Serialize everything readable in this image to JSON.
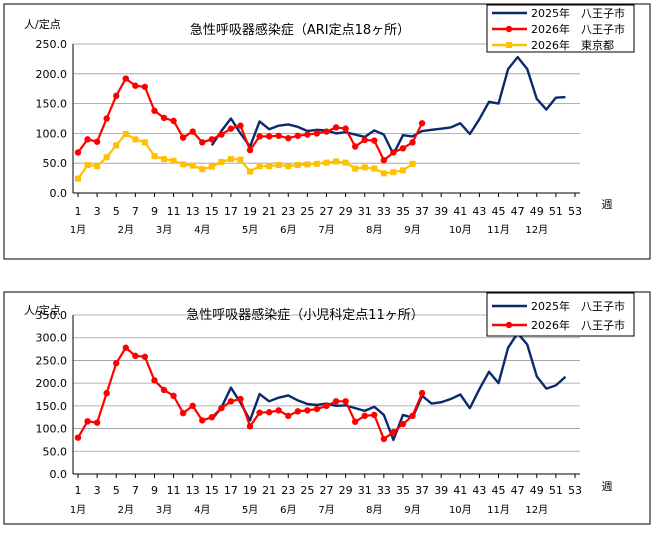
{
  "charts": [
    {
      "title": "急性呼吸器感染症（ARI定点18ヶ所）",
      "ylabel": "人/定点",
      "xlabel": "週",
      "ylim": [
        0,
        250
      ],
      "yticks": [
        "0.0",
        "50.0",
        "100.0",
        "150.0",
        "200.0",
        "250.0"
      ],
      "xticks": [
        "1",
        "3",
        "5",
        "7",
        "9",
        "11",
        "13",
        "15",
        "17",
        "19",
        "21",
        "23",
        "25",
        "27",
        "29",
        "31",
        "33",
        "35",
        "37",
        "39",
        "41",
        "43",
        "45",
        "47",
        "49",
        "51",
        "53"
      ],
      "months": [
        "1月",
        "2月",
        "3月",
        "4月",
        "5月",
        "6月",
        "7月",
        "8月",
        "9月",
        "10月",
        "11月",
        "12月"
      ]
    },
    {
      "title": "急性呼吸器感染症（小児科定点11ヶ所）",
      "ylabel": "人/定点",
      "xlabel": "週",
      "ylim": [
        0,
        350
      ],
      "yticks": [
        "0.0",
        "50.0",
        "100.0",
        "150.0",
        "200.0",
        "250.0",
        "300.0",
        "350.0"
      ],
      "xticks": [
        "1",
        "3",
        "5",
        "7",
        "9",
        "11",
        "13",
        "15",
        "17",
        "19",
        "21",
        "23",
        "25",
        "27",
        "29",
        "31",
        "33",
        "35",
        "37",
        "39",
        "41",
        "43",
        "45",
        "47",
        "49",
        "51",
        "53"
      ],
      "months": [
        "1月",
        "2月",
        "3月",
        "4月",
        "5月",
        "6月",
        "7月",
        "8月",
        "9月",
        "10月",
        "11月",
        "12月"
      ]
    }
  ],
  "chart_data": [
    {
      "type": "line",
      "title": "急性呼吸器感染症（ARI定点18ヶ所）",
      "ylabel": "人/定点",
      "xlabel": "週",
      "ylim": [
        0,
        250
      ],
      "grid": true,
      "legend": "top-right",
      "series": [
        {
          "name": "2025年　八王子市",
          "color": "#0b2a6e",
          "marker": "none",
          "start_week": 15,
          "values": [
            80,
            104,
            125,
            100,
            78,
            120,
            107,
            113,
            115,
            111,
            104,
            106,
            105,
            100,
            102,
            98,
            94,
            105,
            98,
            65,
            97,
            95,
            104,
            106,
            108,
            110,
            117,
            99,
            124,
            153,
            150,
            208,
            228,
            208,
            158,
            140,
            160,
            161
          ]
        },
        {
          "name": "2026年　八王子市",
          "color": "#ff0000",
          "marker": "circle",
          "start_week": 1,
          "values": [
            68,
            90,
            86,
            125,
            163,
            192,
            180,
            178,
            138,
            126,
            121,
            93,
            103,
            85,
            90,
            98,
            108,
            113,
            72,
            95,
            95,
            96,
            92,
            96,
            98,
            100,
            103,
            110,
            108,
            78,
            89,
            88,
            55,
            68,
            75,
            85,
            117
          ]
        },
        {
          "name": "2026年　東京都",
          "color": "#ffc000",
          "marker": "square",
          "start_week": 1,
          "values": [
            24,
            47,
            45,
            60,
            80,
            99,
            90,
            85,
            62,
            57,
            54,
            48,
            46,
            40,
            44,
            52,
            57,
            56,
            36,
            45,
            45,
            47,
            45,
            47,
            48,
            49,
            51,
            53,
            51,
            41,
            43,
            41,
            33,
            35,
            38,
            49
          ]
        }
      ]
    },
    {
      "type": "line",
      "title": "急性呼吸器感染症（小児科定点11ヶ所）",
      "ylabel": "人/定点",
      "xlabel": "週",
      "ylim": [
        0,
        350
      ],
      "grid": true,
      "legend": "top-right",
      "series": [
        {
          "name": "2025年　八王子市",
          "color": "#0b2a6e",
          "marker": "none",
          "start_week": 15,
          "values": [
            120,
            146,
            190,
            157,
            118,
            176,
            160,
            168,
            173,
            162,
            154,
            152,
            155,
            150,
            151,
            145,
            139,
            148,
            130,
            75,
            130,
            124,
            172,
            155,
            158,
            165,
            175,
            145,
            187,
            225,
            200,
            278,
            310,
            285,
            215,
            188,
            195,
            214
          ]
        },
        {
          "name": "2026年　八王子市",
          "color": "#ff0000",
          "marker": "circle",
          "start_week": 1,
          "values": [
            80,
            116,
            113,
            178,
            244,
            278,
            260,
            258,
            206,
            185,
            172,
            134,
            150,
            118,
            125,
            145,
            160,
            165,
            105,
            135,
            136,
            140,
            128,
            138,
            140,
            143,
            150,
            160,
            160,
            115,
            128,
            130,
            77,
            92,
            110,
            128,
            178
          ]
        }
      ]
    }
  ]
}
